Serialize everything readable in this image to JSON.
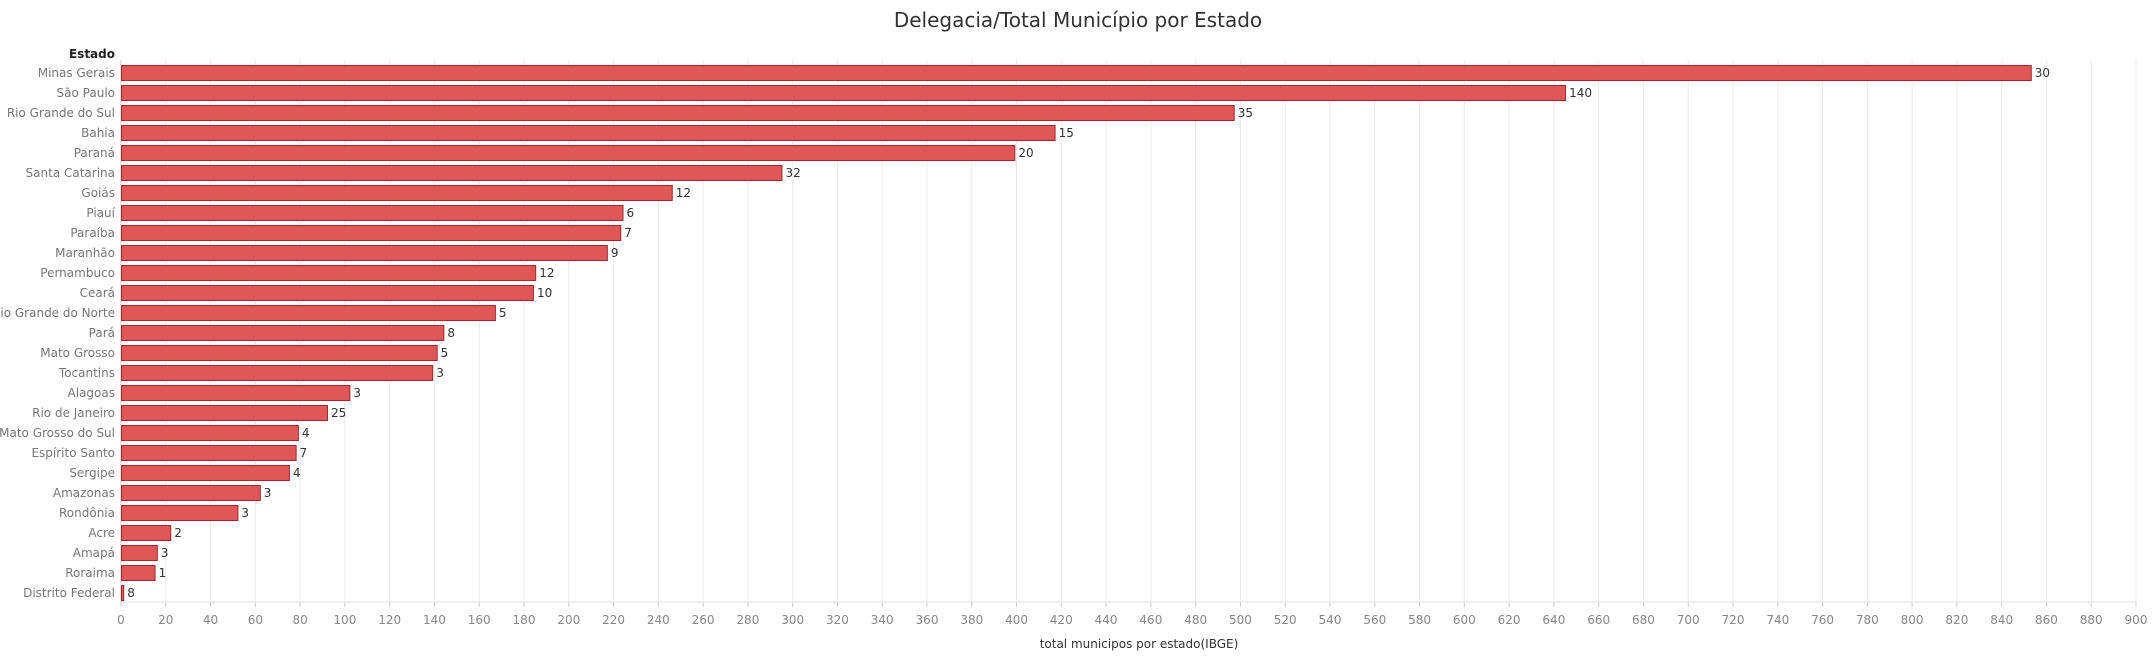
{
  "chart_data": {
    "type": "bar",
    "orientation": "horizontal",
    "title": "Delegacia/Total Município por Estado",
    "category_header": "Estado",
    "xlabel": "total municipos por estado(IBGE)",
    "ylabel": "",
    "xlim": [
      0,
      900
    ],
    "xticks": [
      0,
      20,
      40,
      60,
      80,
      100,
      120,
      140,
      160,
      180,
      200,
      220,
      240,
      260,
      280,
      300,
      320,
      340,
      360,
      380,
      400,
      420,
      440,
      460,
      480,
      500,
      520,
      540,
      560,
      580,
      600,
      620,
      640,
      660,
      680,
      700,
      720,
      740,
      760,
      780,
      800,
      820,
      840,
      860,
      880,
      900
    ],
    "grid": true,
    "categories": [
      "Minas Gerais",
      "São Paulo",
      "Rio Grande do Sul",
      "Bahia",
      "Paraná",
      "Santa Catarina",
      "Goiás",
      "Piauí",
      "Paraíba",
      "Maranhão",
      "Pernambuco",
      "Ceará",
      "Rio Grande do Norte",
      "Pará",
      "Mato Grosso",
      "Tocantins",
      "Alagoas",
      "Rio de Janeiro",
      "Mato Grosso do Sul",
      "Espírito Santo",
      "Sergipe",
      "Amazonas",
      "Rondônia",
      "Acre",
      "Amapá",
      "Roraima",
      "Distrito Federal"
    ],
    "values": [
      853,
      645,
      497,
      417,
      399,
      295,
      246,
      224,
      223,
      217,
      185,
      184,
      167,
      144,
      141,
      139,
      102,
      92,
      79,
      78,
      75,
      62,
      52,
      22,
      16,
      15,
      1
    ],
    "data_labels": [
      "30",
      "140",
      "35",
      "15",
      "20",
      "32",
      "12",
      "6",
      "7",
      "9",
      "12",
      "10",
      "5",
      "8",
      "5",
      "3",
      "3",
      "25",
      "4",
      "7",
      "4",
      "3",
      "3",
      "2",
      "3",
      "1",
      "8"
    ],
    "bar_color": "#e15759",
    "bar_stroke": "#9e2a2c"
  }
}
